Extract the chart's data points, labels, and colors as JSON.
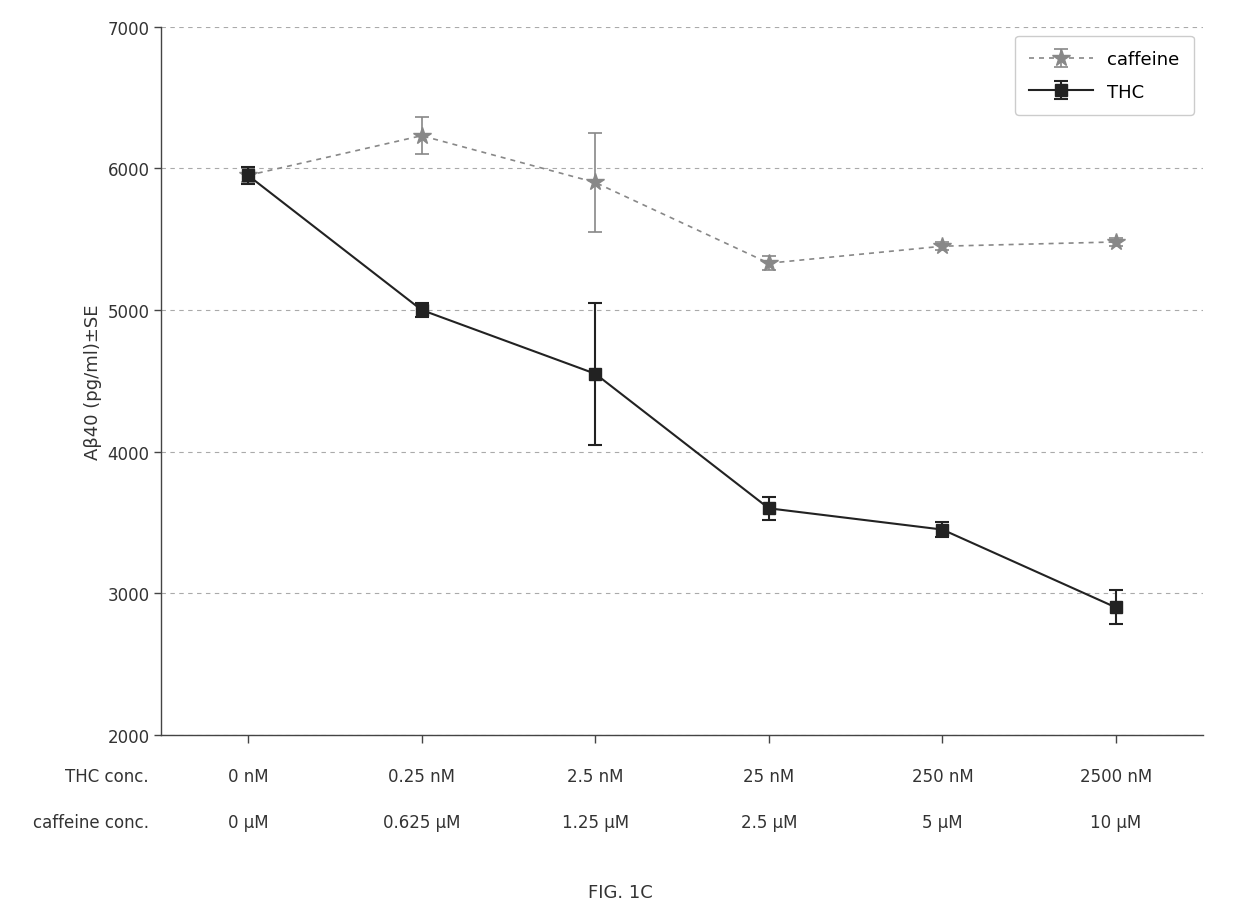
{
  "x_positions": [
    0,
    1,
    2,
    3,
    4,
    5
  ],
  "x_labels_thc": [
    "0 nM",
    "0.25 nM",
    "2.5 nM",
    "25 nM",
    "250 nM",
    "2500 nM"
  ],
  "x_labels_caffeine": [
    "0 μM",
    "0.625 μM",
    "1.25 μM",
    "2.5 μM",
    "5 μM",
    "10 μM"
  ],
  "thc_y": [
    5950,
    5000,
    4550,
    3600,
    3450,
    2900
  ],
  "thc_err": [
    60,
    50,
    500,
    80,
    50,
    120
  ],
  "caffeine_y": [
    5950,
    6230,
    5900,
    5330,
    5450,
    5480
  ],
  "caffeine_err": [
    50,
    130,
    350,
    50,
    30,
    30
  ],
  "ylabel": "Aβ40 (pg/ml)±SE",
  "fig_label": "FIG. 1C",
  "legend_caffeine": "caffeine",
  "legend_thc": "THC",
  "ylim": [
    2000,
    7000
  ],
  "yticks": [
    2000,
    3000,
    4000,
    5000,
    6000,
    7000
  ],
  "line_color": "#222222",
  "caffeine_color": "#888888",
  "background_color": "#ffffff",
  "label_fontsize": 13,
  "tick_fontsize": 12,
  "row_label_thc": "THC conc.",
  "row_label_caffeine": "caffeine conc."
}
